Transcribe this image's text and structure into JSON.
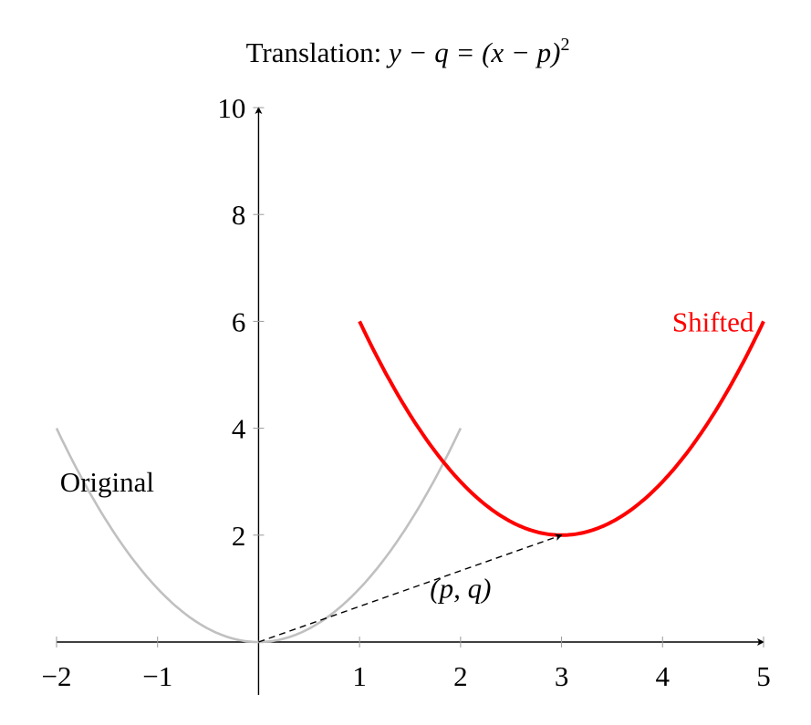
{
  "chart_data": {
    "type": "line",
    "title": "Translation: y − q = (x − p)²",
    "title_parts": {
      "prefix": "Translation: ",
      "math": "y − q = (x − p)",
      "sup": "2"
    },
    "xlim": [
      -2,
      5
    ],
    "ylim": [
      0,
      10
    ],
    "x_ticks": [
      -2,
      -1,
      1,
      2,
      3,
      4,
      5
    ],
    "x_tick_labels": [
      "−2",
      "−1",
      "1",
      "2",
      "3",
      "4",
      "5"
    ],
    "y_ticks": [
      2,
      4,
      6,
      8,
      10
    ],
    "y_tick_labels": [
      "2",
      "4",
      "6",
      "8",
      "10"
    ],
    "grid": false,
    "series": [
      {
        "name": "Original",
        "function": "y = x^2",
        "domain": [
          -2,
          2
        ],
        "color": "#c0c0c0",
        "label_at": [
          -1.5,
          3
        ]
      },
      {
        "name": "Shifted",
        "function": "y = (x - 3)^2 + 2",
        "domain": [
          1,
          5
        ],
        "color": "#ff0000",
        "label_at": [
          4.5,
          6
        ]
      }
    ],
    "annotations": [
      {
        "type": "dashed-arrow",
        "from": [
          0,
          0
        ],
        "to": [
          3,
          2
        ],
        "label": "(p, q)",
        "label_at": [
          2,
          1
        ]
      }
    ]
  }
}
